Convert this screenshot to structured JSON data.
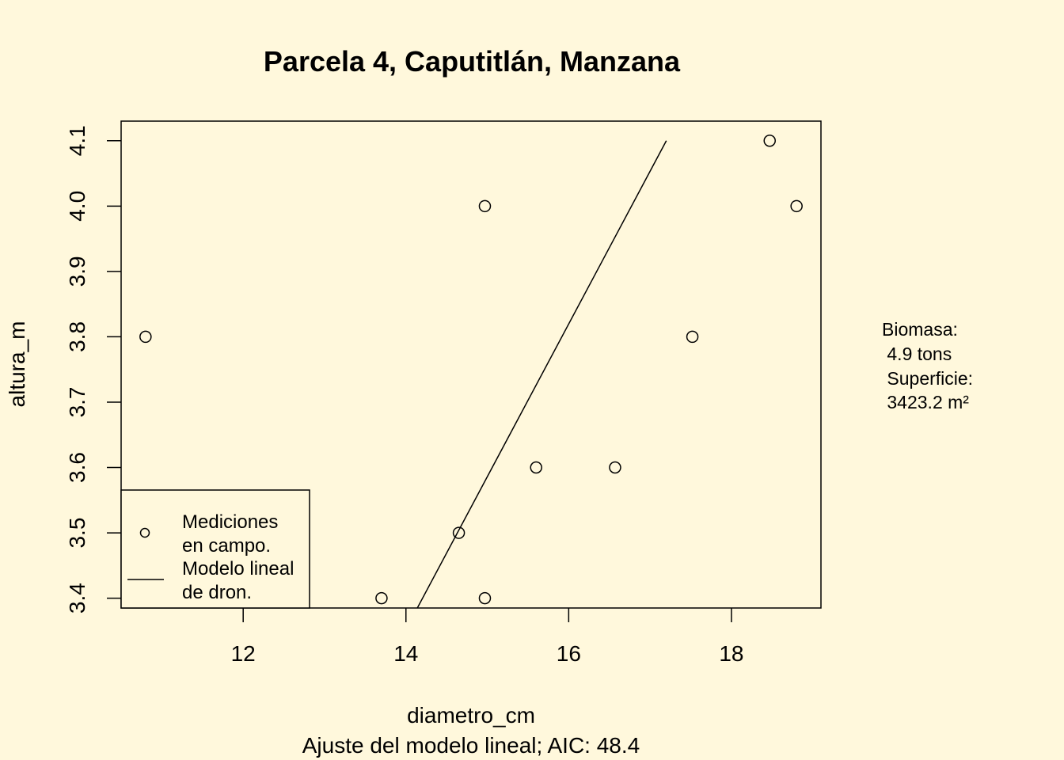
{
  "background": "#FFF8DC",
  "ink": "#000000",
  "chart_data": {
    "type": "scatter",
    "title": "Parcela 4, Caputitlán,  Manzana",
    "xlabel": "diametro_cm",
    "ylabel": "altura_m",
    "subtitle": "Ajuste del modelo lineal; AIC: 48.4",
    "xlim": [
      10.5,
      19.1
    ],
    "ylim": [
      3.385,
      4.13
    ],
    "xticks": [
      "12",
      "14",
      "16",
      "18"
    ],
    "xtick_values": [
      12,
      14,
      16,
      18
    ],
    "yticks": [
      "3.4",
      "3.5",
      "3.6",
      "3.7",
      "3.8",
      "3.9",
      "4.0",
      "4.1"
    ],
    "ytick_values": [
      3.4,
      3.5,
      3.6,
      3.7,
      3.8,
      3.9,
      4.0,
      4.1
    ],
    "grid": false,
    "series": [
      {
        "marker": "open-circle",
        "x": [
          10.8,
          13.7,
          14.65,
          14.97,
          14.97,
          15.6,
          16.57,
          17.52,
          18.47,
          18.8
        ],
        "y": [
          3.8,
          3.4,
          3.5,
          3.4,
          4.0,
          3.6,
          3.6,
          3.8,
          4.1,
          4.0
        ]
      },
      {
        "marker": "line",
        "x": [
          14.14,
          17.2
        ],
        "y": [
          3.37,
          4.1
        ]
      }
    ],
    "legend": {
      "position": "bottom-left",
      "entries": [
        "Mediciones",
        "en campo.",
        "Modelo lineal",
        "de dron."
      ]
    },
    "side_note": [
      "Biomasa:",
      " 4.9 tons",
      " Superficie:",
      " 3423.2 m²"
    ]
  }
}
